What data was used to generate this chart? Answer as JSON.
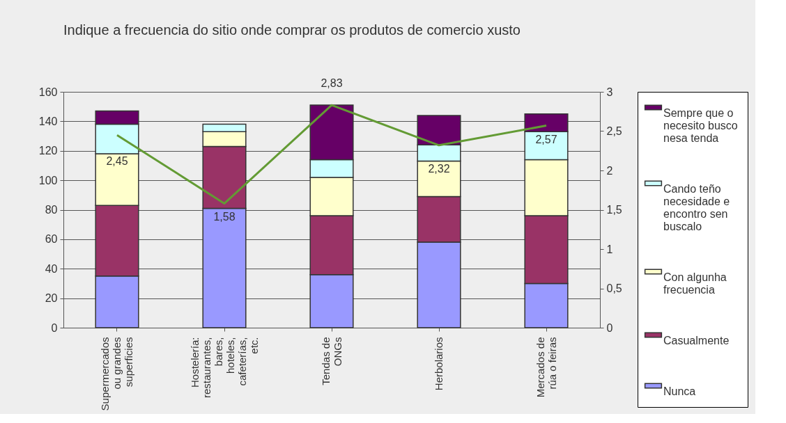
{
  "chart_data": {
    "type": "bar",
    "title": "Indique a frecuencia do sitio onde comprar os produtos de comercio xusto",
    "categories": [
      "Supermercados ou grandes superficies",
      "Hostelería: restaurantes, bares, hoteles, cafeterías, etc.",
      "Tendas de ONGs",
      "Herbolarios",
      "Mercados de rúa o feiras"
    ],
    "stacked": true,
    "series": [
      {
        "name": "Nunca",
        "color": "#9999ff",
        "values": [
          35,
          81,
          36,
          58,
          30
        ]
      },
      {
        "name": "Casualmente",
        "color": "#993366",
        "values": [
          48,
          42,
          40,
          31,
          46
        ]
      },
      {
        "name": "Con algunha frecuencia",
        "color": "#ffffcc",
        "values": [
          35,
          10,
          26,
          24,
          38
        ]
      },
      {
        "name": "Cando teño necesidade e encontro sen buscalo",
        "color": "#ccffff",
        "values": [
          20,
          5,
          12,
          11,
          19
        ]
      },
      {
        "name": "Sempre que o necesito busco nesa tenda",
        "color": "#660066",
        "values": [
          9,
          0,
          37,
          20,
          12
        ]
      },
      {
        "type": "line",
        "axis": "y2",
        "color": "#639b34",
        "values": [
          2.45,
          1.58,
          2.83,
          2.32,
          2.57
        ],
        "value_labels": [
          "2,45",
          "1,58",
          "2,83",
          "2,32",
          "2,57"
        ]
      }
    ],
    "ylim": [
      0,
      160
    ],
    "yticks": [
      0,
      20,
      40,
      60,
      80,
      100,
      120,
      140,
      160
    ],
    "y2lim": [
      0,
      3
    ],
    "y2ticks": [
      0,
      {
        "value": 0.5,
        "label": "0,5"
      },
      1,
      {
        "value": 1.5,
        "label": "1,5"
      },
      2,
      {
        "value": 2.5,
        "label": "2,5"
      },
      3
    ],
    "grid": "y",
    "legend": "right"
  }
}
